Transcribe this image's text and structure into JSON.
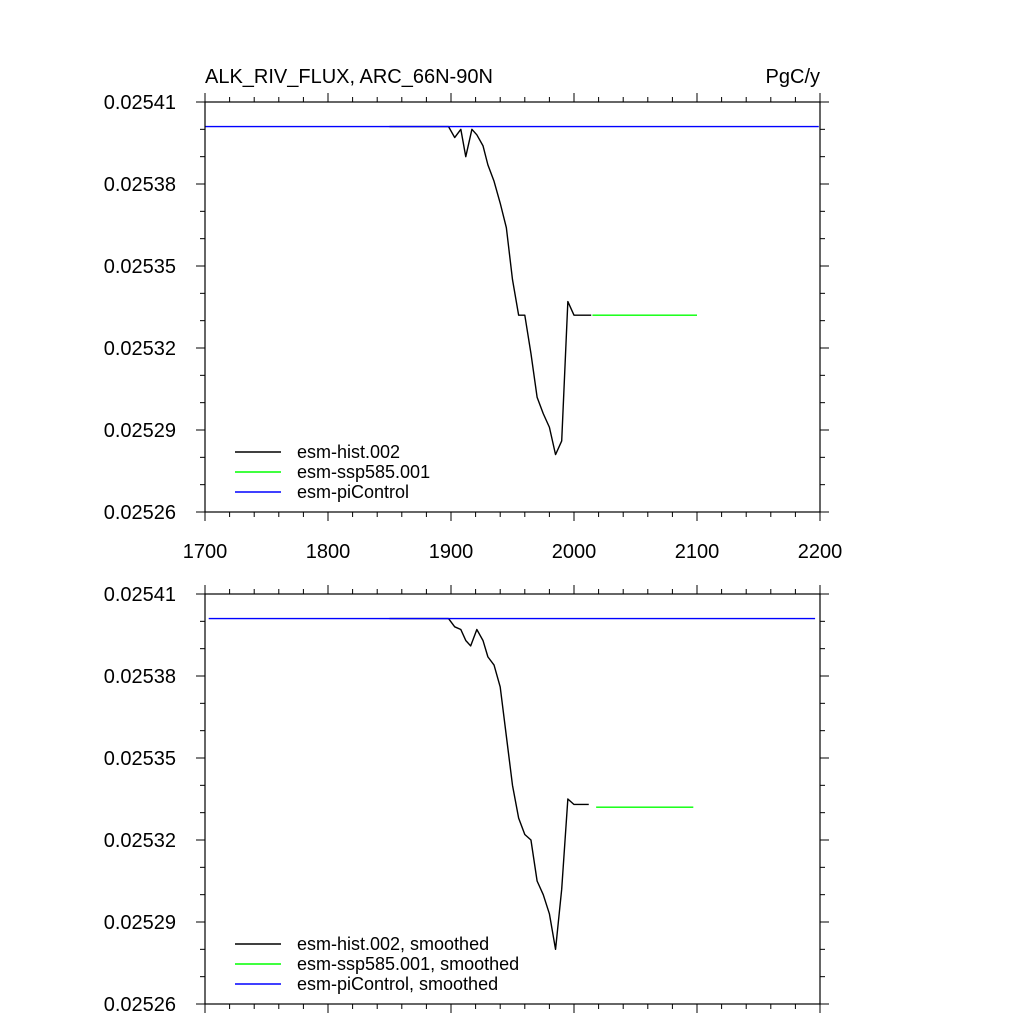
{
  "chart_data": [
    {
      "type": "line",
      "title": "ALK_RIV_FLUX, ARC_66N-90N",
      "units": "PgC/y",
      "xlabel": "",
      "ylabel": "",
      "xlim": [
        1700,
        2200
      ],
      "ylim": [
        0.02526,
        0.02541
      ],
      "xticks": [
        1700,
        1800,
        1900,
        2000,
        2100,
        2200
      ],
      "xtick_labels": [
        "1700",
        "1800",
        "1900",
        "2000",
        "2100",
        "2200"
      ],
      "yticks": [
        0.02526,
        0.02529,
        0.02532,
        0.02535,
        0.02538,
        0.02541
      ],
      "ytick_labels": [
        "0.02526",
        "0.02529",
        "0.02532",
        "0.02535",
        "0.02538",
        "0.02541"
      ],
      "grid": false,
      "legend_position": "bottom-left",
      "series": [
        {
          "name": "esm-hist.002",
          "color": "#000000",
          "x": [
            1850,
            1898,
            1903,
            1908,
            1912,
            1917,
            1921,
            1926,
            1930,
            1935,
            1940,
            1945,
            1950,
            1955,
            1960,
            1965,
            1970,
            1975,
            1980,
            1985,
            1990,
            1995,
            2000,
            2014
          ],
          "y": [
            0.025401,
            0.025401,
            0.025397,
            0.0254,
            0.02539,
            0.0254,
            0.025398,
            0.025394,
            0.025387,
            0.025381,
            0.025373,
            0.025364,
            0.025345,
            0.025332,
            0.025332,
            0.025318,
            0.025302,
            0.025296,
            0.025291,
            0.025281,
            0.025286,
            0.025337,
            0.025332,
            0.025332
          ]
        },
        {
          "name": "esm-ssp585.001",
          "color": "#00ff00",
          "x": [
            2015,
            2025,
            2050,
            2075,
            2100
          ],
          "y": [
            0.025332,
            0.025332,
            0.025332,
            0.025332,
            0.025332
          ]
        },
        {
          "name": "esm-piControl",
          "color": "#0000ff",
          "x": [
            1700,
            1750,
            1800,
            1850,
            1900,
            1950,
            2000,
            2050,
            2100,
            2150,
            2199
          ],
          "y": [
            0.025401,
            0.025401,
            0.025401,
            0.025401,
            0.025401,
            0.025401,
            0.025401,
            0.025401,
            0.025401,
            0.025401,
            0.025401
          ]
        }
      ]
    },
    {
      "type": "line",
      "title": "",
      "xlabel": "",
      "ylabel": "",
      "xlim": [
        1700,
        2200
      ],
      "ylim": [
        0.02526,
        0.02541
      ],
      "xticks": [
        1700,
        1800,
        1900,
        2000,
        2100,
        2200
      ],
      "yticks": [
        0.02526,
        0.02529,
        0.02532,
        0.02535,
        0.02538,
        0.02541
      ],
      "ytick_labels": [
        "0.02526",
        "0.02529",
        "0.02532",
        "0.02535",
        "0.02538",
        "0.02541"
      ],
      "grid": false,
      "legend_position": "bottom-left",
      "series": [
        {
          "name": "esm-hist.002, smoothed",
          "color": "#000000",
          "x": [
            1850,
            1898,
            1903,
            1908,
            1912,
            1916,
            1921,
            1926,
            1930,
            1935,
            1940,
            1945,
            1950,
            1955,
            1960,
            1965,
            1970,
            1975,
            1980,
            1985,
            1990,
            1995,
            2000,
            2012
          ],
          "y": [
            0.025401,
            0.025401,
            0.025398,
            0.025397,
            0.025393,
            0.025391,
            0.025397,
            0.025393,
            0.025387,
            0.025384,
            0.025376,
            0.025358,
            0.02534,
            0.025328,
            0.025322,
            0.02532,
            0.025305,
            0.0253,
            0.025293,
            0.02528,
            0.025302,
            0.025335,
            0.025333,
            0.025333
          ]
        },
        {
          "name": "esm-ssp585.001, smoothed",
          "color": "#00ff00",
          "x": [
            2018,
            2040,
            2060,
            2080,
            2097
          ],
          "y": [
            0.025332,
            0.025332,
            0.025332,
            0.025332,
            0.025332
          ]
        },
        {
          "name": "esm-piControl, smoothed",
          "color": "#0000ff",
          "x": [
            1703,
            1750,
            1800,
            1850,
            1900,
            1950,
            2000,
            2050,
            2100,
            2150,
            2196
          ],
          "y": [
            0.025401,
            0.025401,
            0.025401,
            0.025401,
            0.025401,
            0.025401,
            0.025401,
            0.025401,
            0.025401,
            0.025401,
            0.025401
          ]
        }
      ]
    }
  ]
}
